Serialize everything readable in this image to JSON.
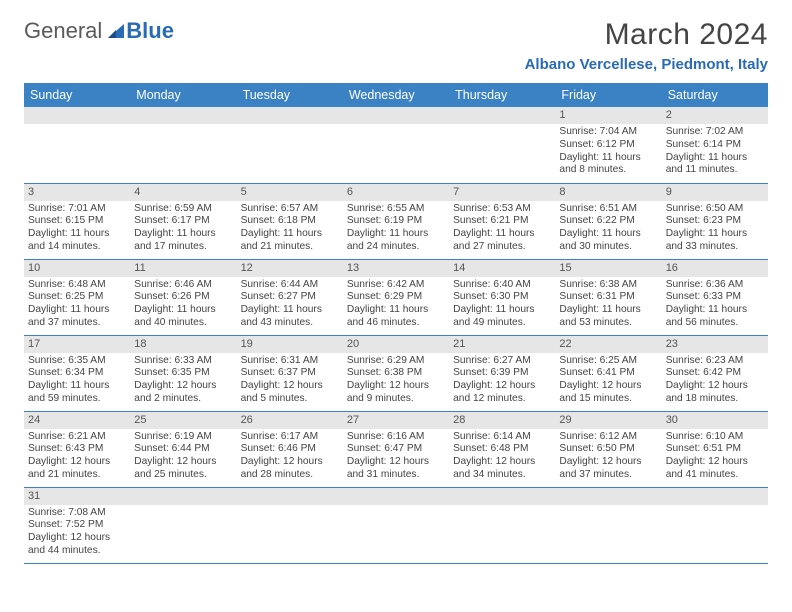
{
  "logo": {
    "text1": "General",
    "text2": "Blue"
  },
  "title": "March 2024",
  "location": "Albano Vercellese, Piedmont, Italy",
  "colors": {
    "header_bg": "#3b82c4",
    "header_fg": "#ffffff",
    "daynum_bg": "#e6e6e6",
    "row_border": "#3b82c4",
    "accent": "#2a6bb5"
  },
  "weekdays": [
    "Sunday",
    "Monday",
    "Tuesday",
    "Wednesday",
    "Thursday",
    "Friday",
    "Saturday"
  ],
  "weeks": [
    [
      null,
      null,
      null,
      null,
      null,
      {
        "n": "1",
        "sr": "Sunrise: 7:04 AM",
        "ss": "Sunset: 6:12 PM",
        "dl": "Daylight: 11 hours and 8 minutes."
      },
      {
        "n": "2",
        "sr": "Sunrise: 7:02 AM",
        "ss": "Sunset: 6:14 PM",
        "dl": "Daylight: 11 hours and 11 minutes."
      }
    ],
    [
      {
        "n": "3",
        "sr": "Sunrise: 7:01 AM",
        "ss": "Sunset: 6:15 PM",
        "dl": "Daylight: 11 hours and 14 minutes."
      },
      {
        "n": "4",
        "sr": "Sunrise: 6:59 AM",
        "ss": "Sunset: 6:17 PM",
        "dl": "Daylight: 11 hours and 17 minutes."
      },
      {
        "n": "5",
        "sr": "Sunrise: 6:57 AM",
        "ss": "Sunset: 6:18 PM",
        "dl": "Daylight: 11 hours and 21 minutes."
      },
      {
        "n": "6",
        "sr": "Sunrise: 6:55 AM",
        "ss": "Sunset: 6:19 PM",
        "dl": "Daylight: 11 hours and 24 minutes."
      },
      {
        "n": "7",
        "sr": "Sunrise: 6:53 AM",
        "ss": "Sunset: 6:21 PM",
        "dl": "Daylight: 11 hours and 27 minutes."
      },
      {
        "n": "8",
        "sr": "Sunrise: 6:51 AM",
        "ss": "Sunset: 6:22 PM",
        "dl": "Daylight: 11 hours and 30 minutes."
      },
      {
        "n": "9",
        "sr": "Sunrise: 6:50 AM",
        "ss": "Sunset: 6:23 PM",
        "dl": "Daylight: 11 hours and 33 minutes."
      }
    ],
    [
      {
        "n": "10",
        "sr": "Sunrise: 6:48 AM",
        "ss": "Sunset: 6:25 PM",
        "dl": "Daylight: 11 hours and 37 minutes."
      },
      {
        "n": "11",
        "sr": "Sunrise: 6:46 AM",
        "ss": "Sunset: 6:26 PM",
        "dl": "Daylight: 11 hours and 40 minutes."
      },
      {
        "n": "12",
        "sr": "Sunrise: 6:44 AM",
        "ss": "Sunset: 6:27 PM",
        "dl": "Daylight: 11 hours and 43 minutes."
      },
      {
        "n": "13",
        "sr": "Sunrise: 6:42 AM",
        "ss": "Sunset: 6:29 PM",
        "dl": "Daylight: 11 hours and 46 minutes."
      },
      {
        "n": "14",
        "sr": "Sunrise: 6:40 AM",
        "ss": "Sunset: 6:30 PM",
        "dl": "Daylight: 11 hours and 49 minutes."
      },
      {
        "n": "15",
        "sr": "Sunrise: 6:38 AM",
        "ss": "Sunset: 6:31 PM",
        "dl": "Daylight: 11 hours and 53 minutes."
      },
      {
        "n": "16",
        "sr": "Sunrise: 6:36 AM",
        "ss": "Sunset: 6:33 PM",
        "dl": "Daylight: 11 hours and 56 minutes."
      }
    ],
    [
      {
        "n": "17",
        "sr": "Sunrise: 6:35 AM",
        "ss": "Sunset: 6:34 PM",
        "dl": "Daylight: 11 hours and 59 minutes."
      },
      {
        "n": "18",
        "sr": "Sunrise: 6:33 AM",
        "ss": "Sunset: 6:35 PM",
        "dl": "Daylight: 12 hours and 2 minutes."
      },
      {
        "n": "19",
        "sr": "Sunrise: 6:31 AM",
        "ss": "Sunset: 6:37 PM",
        "dl": "Daylight: 12 hours and 5 minutes."
      },
      {
        "n": "20",
        "sr": "Sunrise: 6:29 AM",
        "ss": "Sunset: 6:38 PM",
        "dl": "Daylight: 12 hours and 9 minutes."
      },
      {
        "n": "21",
        "sr": "Sunrise: 6:27 AM",
        "ss": "Sunset: 6:39 PM",
        "dl": "Daylight: 12 hours and 12 minutes."
      },
      {
        "n": "22",
        "sr": "Sunrise: 6:25 AM",
        "ss": "Sunset: 6:41 PM",
        "dl": "Daylight: 12 hours and 15 minutes."
      },
      {
        "n": "23",
        "sr": "Sunrise: 6:23 AM",
        "ss": "Sunset: 6:42 PM",
        "dl": "Daylight: 12 hours and 18 minutes."
      }
    ],
    [
      {
        "n": "24",
        "sr": "Sunrise: 6:21 AM",
        "ss": "Sunset: 6:43 PM",
        "dl": "Daylight: 12 hours and 21 minutes."
      },
      {
        "n": "25",
        "sr": "Sunrise: 6:19 AM",
        "ss": "Sunset: 6:44 PM",
        "dl": "Daylight: 12 hours and 25 minutes."
      },
      {
        "n": "26",
        "sr": "Sunrise: 6:17 AM",
        "ss": "Sunset: 6:46 PM",
        "dl": "Daylight: 12 hours and 28 minutes."
      },
      {
        "n": "27",
        "sr": "Sunrise: 6:16 AM",
        "ss": "Sunset: 6:47 PM",
        "dl": "Daylight: 12 hours and 31 minutes."
      },
      {
        "n": "28",
        "sr": "Sunrise: 6:14 AM",
        "ss": "Sunset: 6:48 PM",
        "dl": "Daylight: 12 hours and 34 minutes."
      },
      {
        "n": "29",
        "sr": "Sunrise: 6:12 AM",
        "ss": "Sunset: 6:50 PM",
        "dl": "Daylight: 12 hours and 37 minutes."
      },
      {
        "n": "30",
        "sr": "Sunrise: 6:10 AM",
        "ss": "Sunset: 6:51 PM",
        "dl": "Daylight: 12 hours and 41 minutes."
      }
    ],
    [
      {
        "n": "31",
        "sr": "Sunrise: 7:08 AM",
        "ss": "Sunset: 7:52 PM",
        "dl": "Daylight: 12 hours and 44 minutes."
      },
      null,
      null,
      null,
      null,
      null,
      null
    ]
  ]
}
